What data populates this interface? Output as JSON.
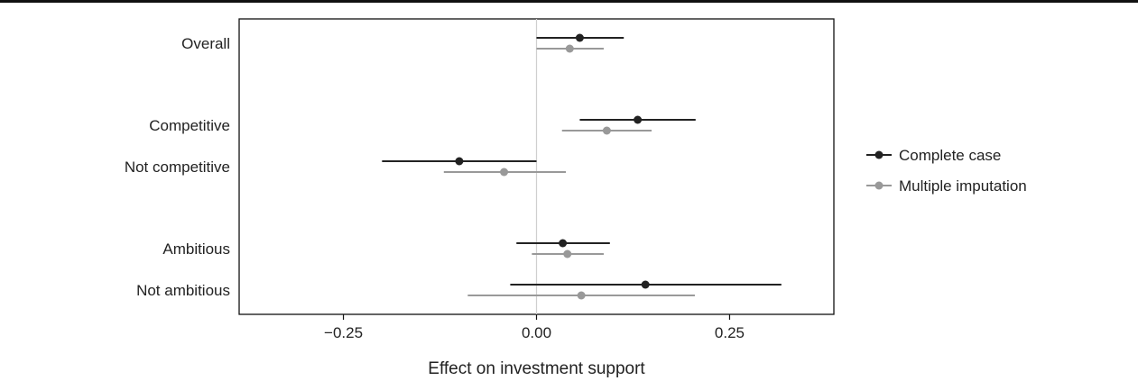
{
  "chart_data": {
    "type": "scatter",
    "subtype": "coefficient-plot",
    "xlabel": "Effect on investment support",
    "xlim": [
      -0.385,
      0.385
    ],
    "xticks": [
      -0.25,
      0.0,
      0.25
    ],
    "xtick_labels": [
      "−0.25",
      "0.00",
      "0.25"
    ],
    "reference_line_x": 0,
    "grid": false,
    "legend_position": "right",
    "categories": [
      "Overall",
      "Competitive",
      "Not competitive",
      "Ambitious",
      "Not ambitious"
    ],
    "series": [
      {
        "name": "Complete case",
        "color": "#222222",
        "points": [
          {
            "category": "Overall",
            "estimate": 0.056,
            "lower": 0.0,
            "upper": 0.113
          },
          {
            "category": "Competitive",
            "estimate": 0.131,
            "lower": 0.056,
            "upper": 0.206
          },
          {
            "category": "Not competitive",
            "estimate": -0.1,
            "lower": -0.2,
            "upper": 0.0
          },
          {
            "category": "Ambitious",
            "estimate": 0.034,
            "lower": -0.026,
            "upper": 0.095
          },
          {
            "category": "Not ambitious",
            "estimate": 0.141,
            "lower": -0.034,
            "upper": 0.317
          }
        ]
      },
      {
        "name": "Multiple imputation",
        "color": "#999999",
        "points": [
          {
            "category": "Overall",
            "estimate": 0.043,
            "lower": 0.0,
            "upper": 0.087
          },
          {
            "category": "Competitive",
            "estimate": 0.091,
            "lower": 0.033,
            "upper": 0.149
          },
          {
            "category": "Not competitive",
            "estimate": -0.042,
            "lower": -0.12,
            "upper": 0.038
          },
          {
            "category": "Ambitious",
            "estimate": 0.04,
            "lower": -0.006,
            "upper": 0.087
          },
          {
            "category": "Not ambitious",
            "estimate": 0.058,
            "lower": -0.089,
            "upper": 0.205
          }
        ]
      }
    ]
  }
}
